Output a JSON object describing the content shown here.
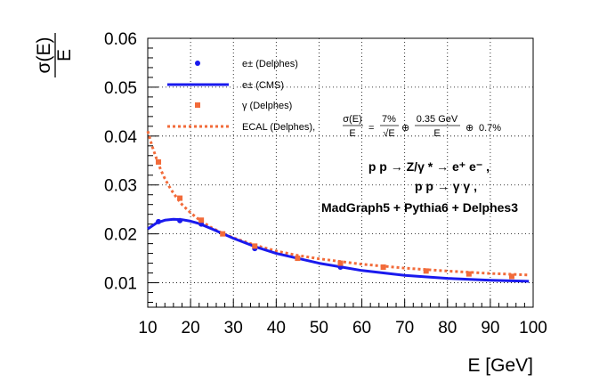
{
  "chart_data": {
    "type": "line",
    "xlabel": "E [GeV]",
    "ylabel_num": "σ(E)",
    "ylabel_den": "E",
    "xlim": [
      10,
      100
    ],
    "ylim": [
      0.005,
      0.06
    ],
    "grid": true,
    "x_ticks": [
      "10",
      "20",
      "30",
      "40",
      "50",
      "60",
      "70",
      "80",
      "90",
      "100"
    ],
    "y_ticks": [
      "0.01",
      "0.02",
      "0.03",
      "0.04",
      "0.05",
      "0.06"
    ],
    "y_tick_values": [
      0.01,
      0.02,
      0.03,
      0.04,
      0.05,
      0.06
    ],
    "x_tick_values": [
      10,
      20,
      30,
      40,
      50,
      60,
      70,
      80,
      90,
      100
    ],
    "series": [
      {
        "name": "e± (Delphes)",
        "style": "marker-circle",
        "color": "#1a1aee",
        "x": [
          12.5,
          17.5,
          22.5,
          35,
          55
        ],
        "y": [
          0.0225,
          0.0227,
          0.022,
          0.017,
          0.0132
        ]
      },
      {
        "name": "e± (CMS)",
        "style": "line-solid",
        "color": "#1a1aee",
        "x": [
          10,
          12,
          14,
          16,
          18,
          20,
          22,
          25,
          30,
          35,
          40,
          50,
          60,
          70,
          80,
          90,
          99
        ],
        "y": [
          0.021,
          0.0222,
          0.0228,
          0.023,
          0.0229,
          0.0226,
          0.0221,
          0.021,
          0.0191,
          0.0174,
          0.016,
          0.014,
          0.0125,
          0.0115,
          0.0109,
          0.0105,
          0.0103
        ]
      },
      {
        "name": "γ (Delphes)",
        "style": "marker-square",
        "color": "#f26b3a",
        "x": [
          12.5,
          17.5,
          22.5,
          27.5,
          35,
          45,
          55,
          65,
          75,
          85,
          95
        ],
        "y": [
          0.0347,
          0.0273,
          0.0228,
          0.02,
          0.0175,
          0.015,
          0.014,
          0.0132,
          0.0124,
          0.0118,
          0.0113
        ]
      },
      {
        "name": "ECAL (Delphes)",
        "style": "line-dotted",
        "color": "#f26b3a",
        "x": [
          10,
          11,
          12,
          13,
          14,
          15,
          16,
          18,
          20,
          22,
          25,
          28,
          30,
          35,
          40,
          45,
          50,
          60,
          70,
          80,
          90,
          99
        ],
        "y": [
          0.041,
          0.038,
          0.0355,
          0.0332,
          0.0313,
          0.0297,
          0.0283,
          0.026,
          0.0243,
          0.0229,
          0.0212,
          0.0199,
          0.0192,
          0.0177,
          0.0165,
          0.0156,
          0.0149,
          0.0138,
          0.013,
          0.0124,
          0.0119,
          0.0116
        ]
      }
    ],
    "legend": {
      "placement": "top-left",
      "entries": [
        "e± (Delphes)",
        "e± (CMS)",
        "γ (Delphes)",
        "ECAL (Delphes),"
      ],
      "formula": {
        "lhs_num": "σ(E)",
        "lhs_den": "E",
        "eq": "=",
        "t1_num": "7%",
        "t1_den": "√E",
        "oplus1": "⊕",
        "t2_num": "0.35 GeV",
        "t2_den": "E",
        "oplus2": "⊕",
        "t3": "0.7%"
      }
    },
    "annotations": [
      "p p → Z/γ * → e⁺ e⁻ ,",
      "p p → γ γ ,",
      "MadGraph5 + Pythia6 + Delphes3"
    ]
  }
}
